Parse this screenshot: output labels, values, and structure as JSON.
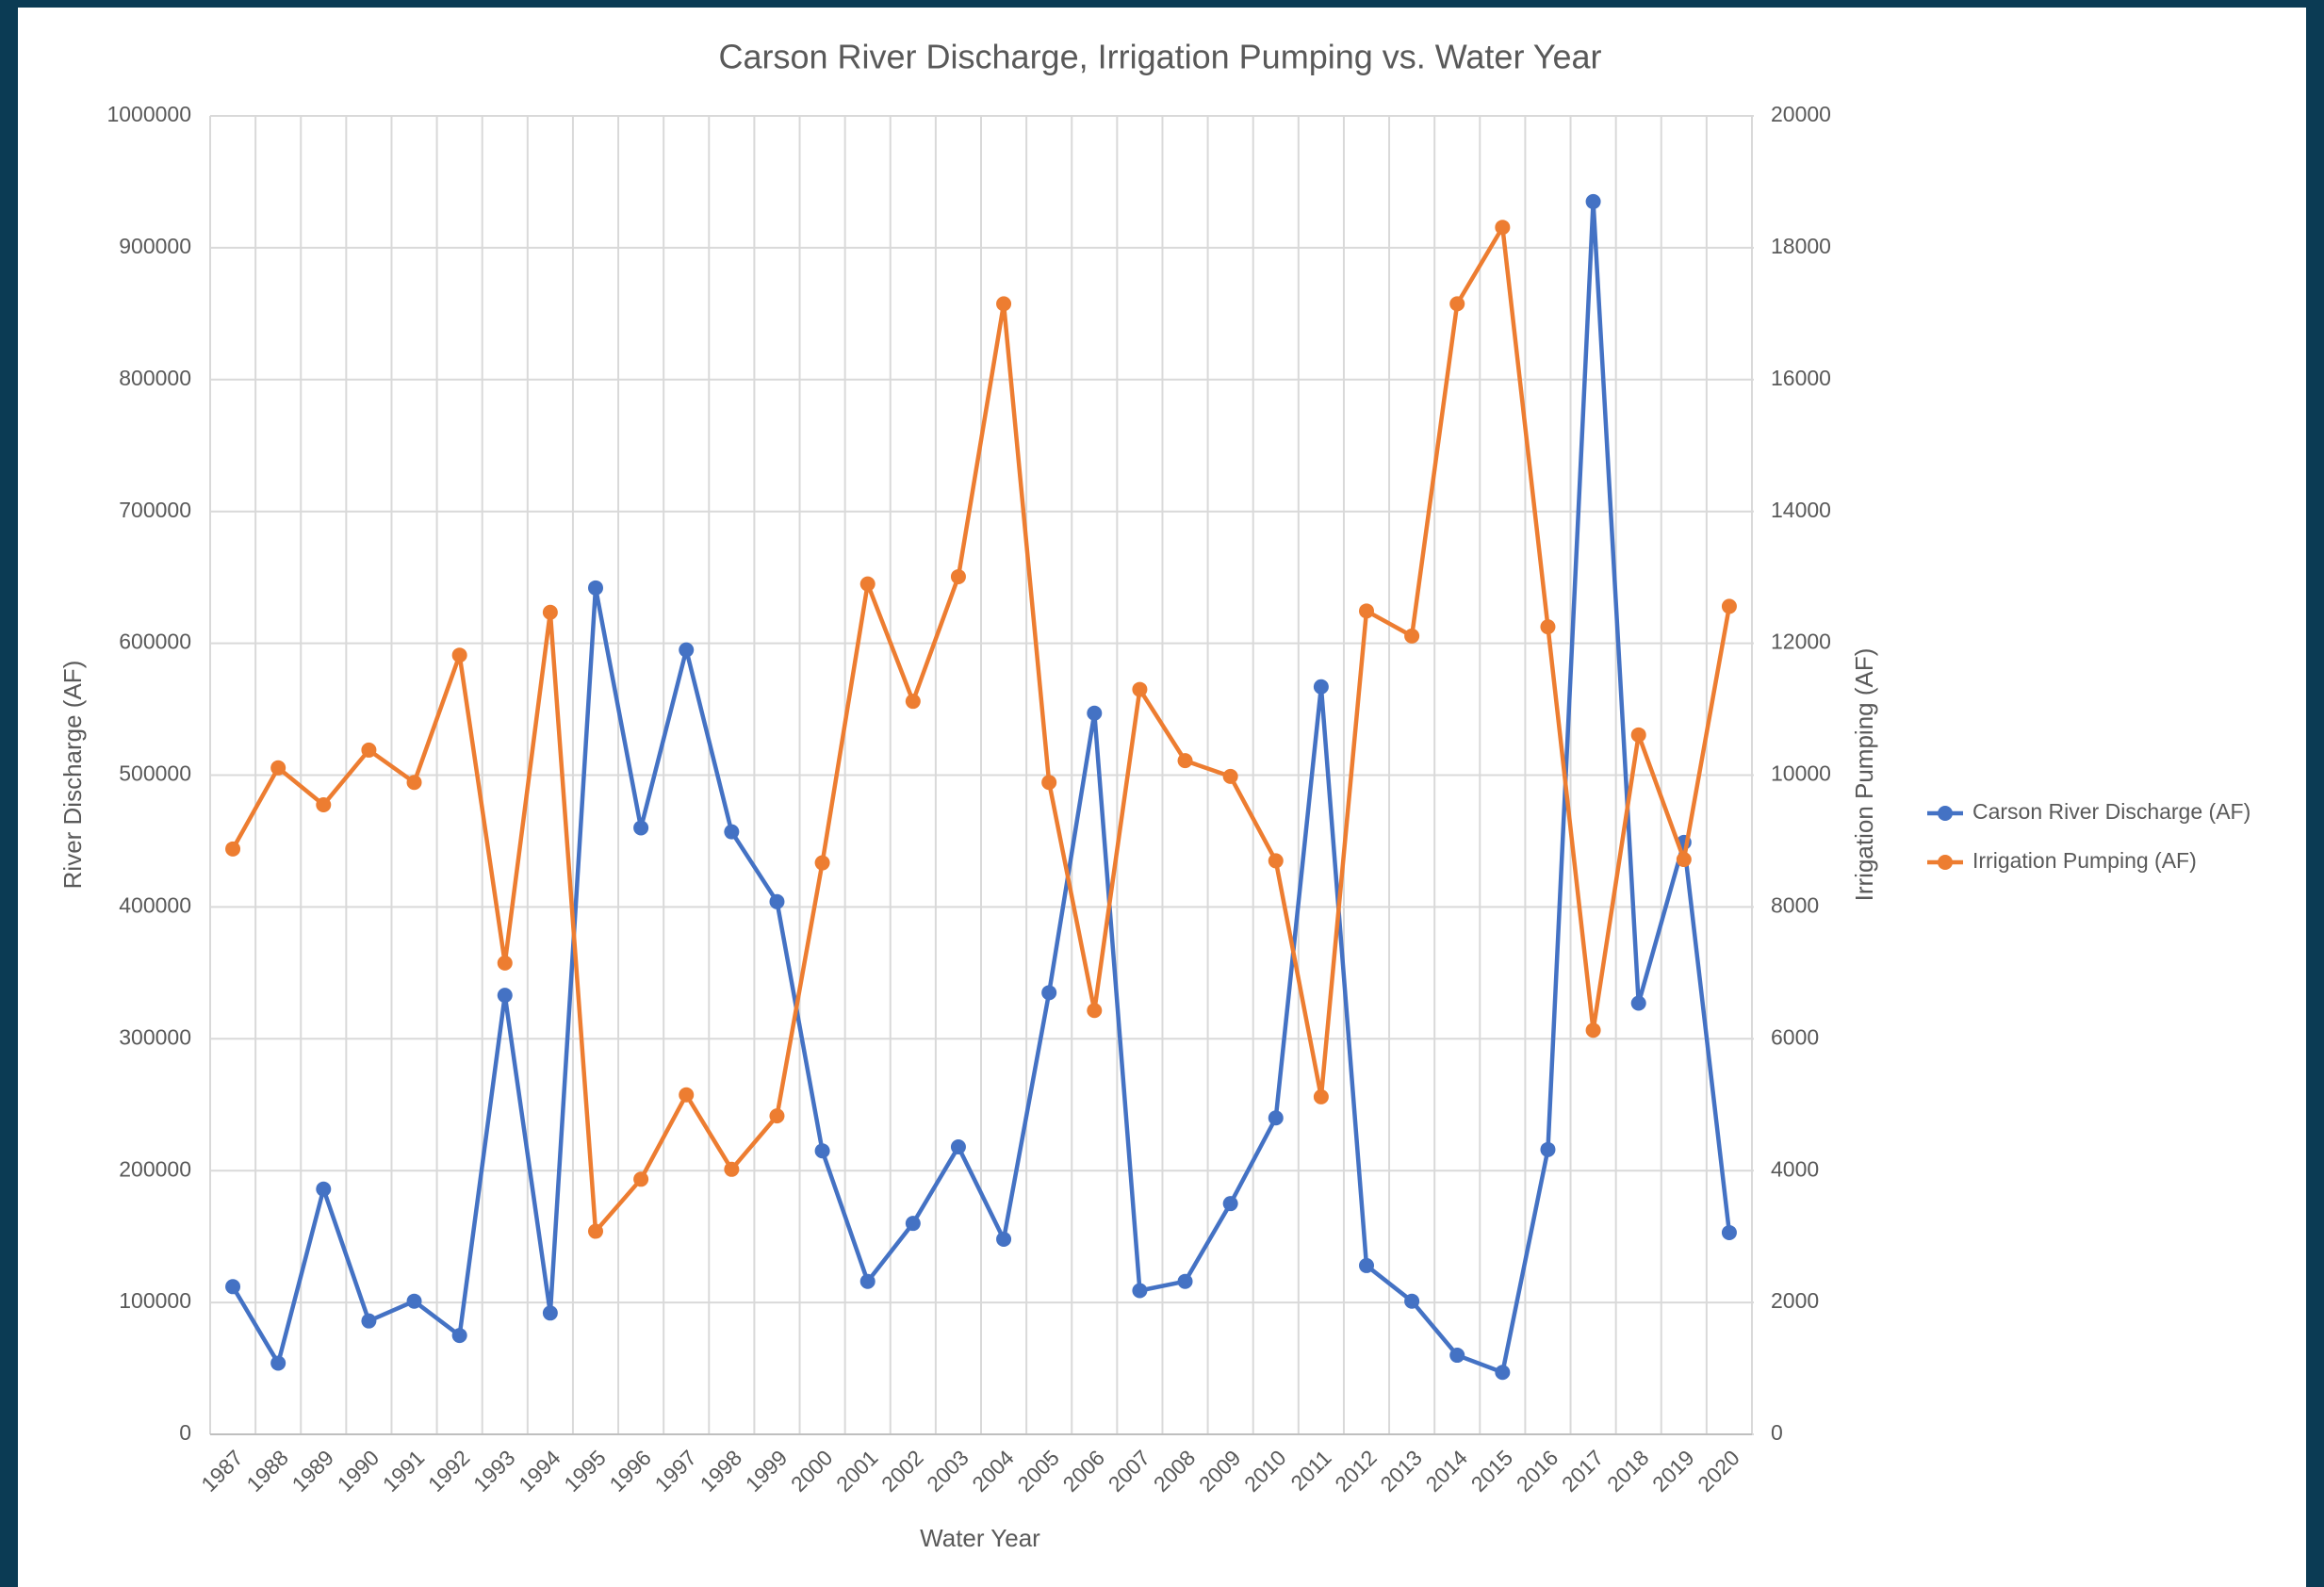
{
  "chart_data": {
    "type": "line",
    "title": "Carson River Discharge, Irrigation Pumping vs. Water Year",
    "x_label": "Water Year",
    "y_label": "River Discharge (AF)",
    "y2_label": "Irrigation Pumping (AF)",
    "categories": [
      "1987",
      "1988",
      "1989",
      "1990",
      "1991",
      "1992",
      "1993",
      "1994",
      "1995",
      "1996",
      "1997",
      "1998",
      "1999",
      "2000",
      "2001",
      "2002",
      "2003",
      "2004",
      "2005",
      "2006",
      "2007",
      "2008",
      "2009",
      "2010",
      "2011",
      "2012",
      "2013",
      "2014",
      "2015",
      "2016",
      "2017",
      "2018",
      "2019",
      "2020"
    ],
    "series": [
      {
        "name": "Carson River Discharge (AF)",
        "color": "#4472c4",
        "values": [
          112000,
          54000,
          186000,
          86000,
          101000,
          75000,
          333000,
          92000,
          642000,
          460000,
          595000,
          457000,
          404000,
          215000,
          116000,
          160000,
          218000,
          148000,
          335000,
          547000,
          109000,
          116000,
          175000,
          240000,
          567000,
          128000,
          101000,
          60000,
          47000,
          216000,
          935000,
          327000,
          449000,
          153000
        ]
      },
      {
        "name": "Irrigation Pumping (AF)",
        "color": "#ed7d31",
        "axis": "y2",
        "values": [
          8880,
          10110,
          9550,
          10380,
          9890,
          11820,
          7150,
          12470,
          3080,
          3870,
          5150,
          4020,
          4830,
          8670,
          12900,
          11120,
          13010,
          17150,
          9890,
          6430,
          11300,
          10220,
          9980,
          8700,
          5120,
          12490,
          12110,
          17150,
          18310,
          12250,
          6130,
          10610,
          8720,
          12560
        ]
      }
    ],
    "ylim": [
      0,
      1000000
    ],
    "yticks": [
      0,
      100000,
      200000,
      300000,
      400000,
      500000,
      600000,
      700000,
      800000,
      900000,
      1000000
    ],
    "y2lim": [
      0,
      20000
    ],
    "y2ticks": [
      0,
      2000,
      4000,
      6000,
      8000,
      10000,
      12000,
      14000,
      16000,
      18000,
      20000
    ],
    "grid": true,
    "legend": "right"
  }
}
